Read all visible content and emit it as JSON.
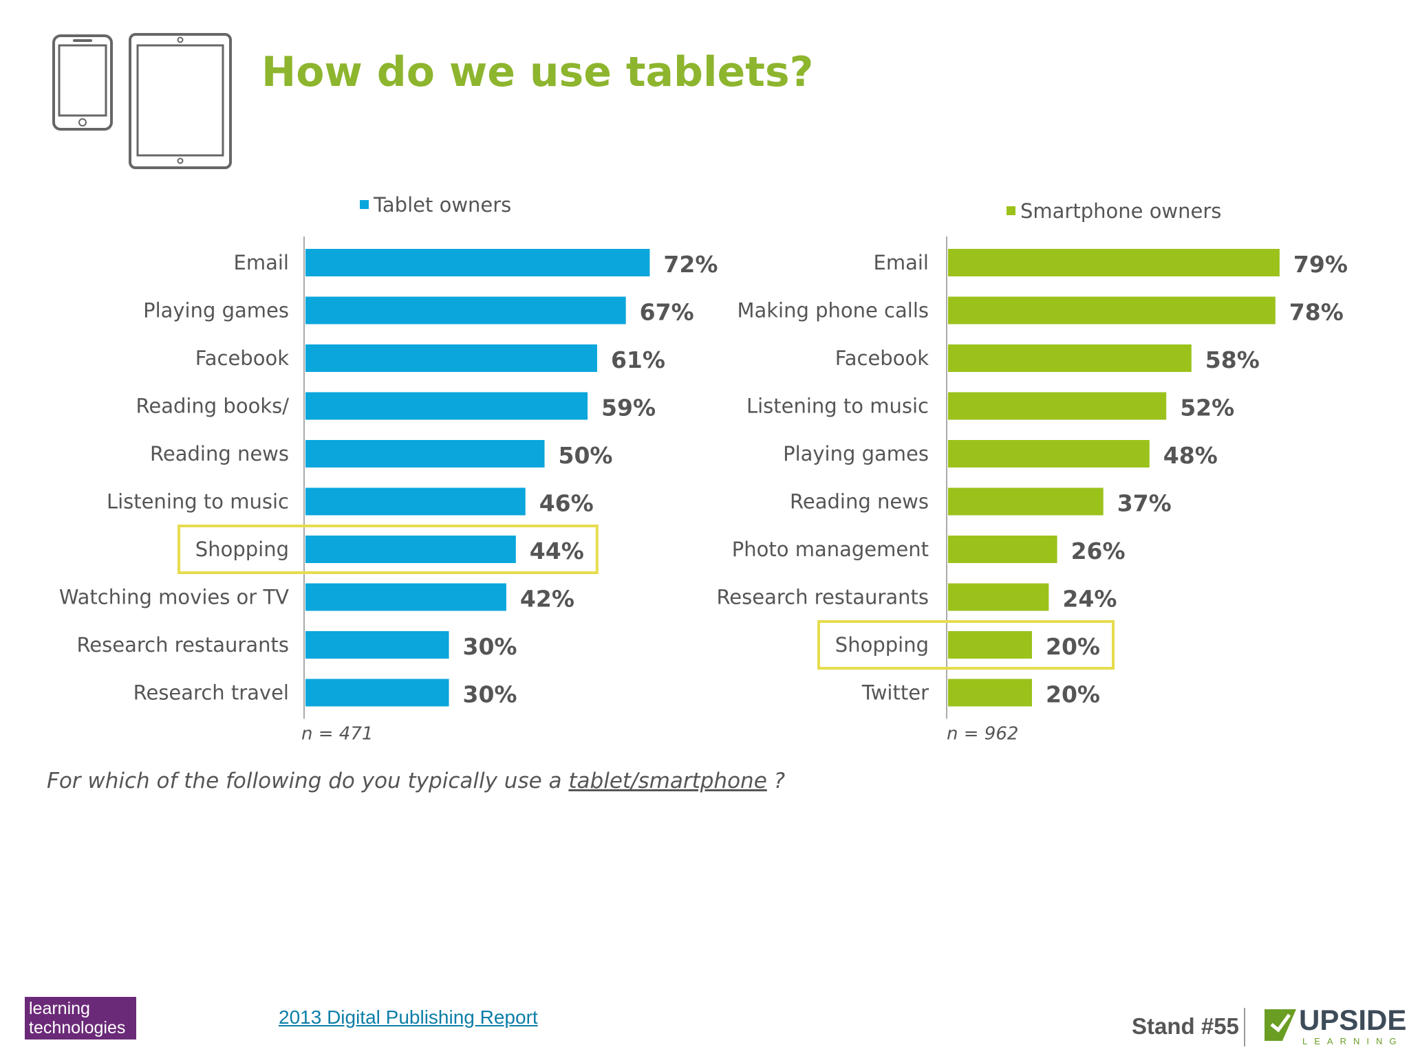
{
  "title": "How do we use tablets?",
  "question": {
    "before": "For which of the following do you typically use a ",
    "underlined": "tablet/smartphone",
    "after": " ?"
  },
  "footer": {
    "logo_line1": "learning",
    "logo_line2": "technologies",
    "source_link": "2013 Digital Publishing Report",
    "stand": "Stand #55",
    "brand_name": "UPSIDE",
    "brand_sub": "LEARNING"
  },
  "colors": {
    "title": "#8db52e",
    "tablet": "#0aa6dc",
    "smartphone": "#9bc21b",
    "highlight": "#e6dc4e"
  },
  "chart_data": [
    {
      "type": "bar",
      "orientation": "horizontal",
      "legend": "Tablet owners",
      "sample": "n = 471",
      "categories": [
        "Email",
        "Playing games",
        "Facebook",
        "Reading books/",
        "Reading news",
        "Listening to music",
        "Shopping",
        "Watching movies or TV",
        "Research restaurants",
        "Research travel"
      ],
      "values": [
        72,
        67,
        61,
        59,
        50,
        46,
        44,
        42,
        30,
        30
      ],
      "labels": [
        "72%",
        "67%",
        "61%",
        "59%",
        "50%",
        "46%",
        "44%",
        "42%",
        "30%",
        "30%"
      ],
      "highlight_category": "Shopping",
      "unit": "%"
    },
    {
      "type": "bar",
      "orientation": "horizontal",
      "legend": "Smartphone owners",
      "sample": "n = 962",
      "categories": [
        "Email",
        "Making phone calls",
        "Facebook",
        "Listening to music",
        "Playing games",
        "Reading news",
        "Photo management",
        "Research restaurants",
        "Shopping",
        "Twitter"
      ],
      "values": [
        79,
        78,
        58,
        52,
        48,
        37,
        26,
        24,
        20,
        20
      ],
      "labels": [
        "79%",
        "78%",
        "58%",
        "52%",
        "48%",
        "37%",
        "26%",
        "24%",
        "20%",
        "20%"
      ],
      "highlight_category": "Shopping",
      "unit": "%"
    }
  ]
}
